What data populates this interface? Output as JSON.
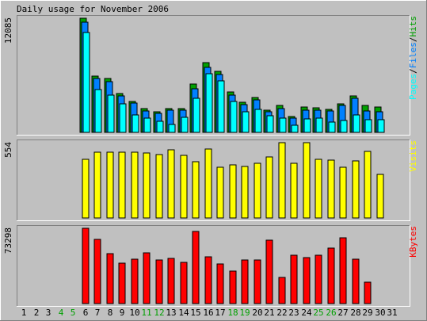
{
  "chart_data": {
    "type": "bar",
    "title": "Daily usage for November 2006",
    "categories": [
      "1",
      "2",
      "3",
      "4",
      "5",
      "6",
      "7",
      "8",
      "9",
      "10",
      "11",
      "12",
      "13",
      "14",
      "15",
      "16",
      "17",
      "18",
      "19",
      "20",
      "21",
      "22",
      "23",
      "24",
      "25",
      "26",
      "27",
      "28",
      "29",
      "30",
      "31"
    ],
    "weekend_days": [
      "4",
      "5",
      "11",
      "12",
      "18",
      "19",
      "25",
      "26"
    ],
    "colors": {
      "pages": "#00ffff",
      "files": "#0080ff",
      "hits": "#00a000",
      "visits": "#ffff00",
      "kbytes": "#ff0000",
      "panel_bg": "#c0c0c0",
      "weekend_label": "#00a000"
    },
    "panels": [
      {
        "id": "hits",
        "max_label": "12085",
        "ymax": 12085,
        "legend": [
          {
            "text": "Pages",
            "color": "#00ffff"
          },
          {
            "text": "/",
            "color": "#000000"
          },
          {
            "text": "Files",
            "color": "#0080ff"
          },
          {
            "text": "/",
            "color": "#000000"
          },
          {
            "text": "Hits",
            "color": "#00a000"
          }
        ],
        "series": [
          {
            "name": "Hits",
            "color": "#00a000",
            "values": [
              0,
              0,
              0,
              0,
              0,
              12085,
              5980,
              5730,
              4150,
              3310,
              2490,
              2180,
              2520,
              2540,
              5120,
              7370,
              6480,
              4280,
              3150,
              3700,
              2350,
              2870,
              1700,
              2680,
              2560,
              2440,
              3030,
              3900,
              2870,
              2690,
              0
            ]
          },
          {
            "name": "Files",
            "color": "#0080ff",
            "values": [
              0,
              0,
              0,
              0,
              0,
              11700,
              5700,
              5400,
              3900,
              3100,
              2280,
              2020,
              2350,
              2370,
              4650,
              6900,
              6100,
              3980,
              2900,
              3480,
              2180,
              2540,
              1480,
              2390,
              2390,
              2280,
              2820,
              3590,
              2280,
              2180,
              0
            ]
          },
          {
            "name": "Pages",
            "color": "#00ffff",
            "values": [
              0,
              0,
              0,
              0,
              0,
              10550,
              4550,
              3930,
              3000,
              1840,
              1470,
              1200,
              870,
              1580,
              3650,
              6250,
              5480,
              3300,
              2180,
              2450,
              1780,
              1520,
              750,
              1400,
              1520,
              1100,
              1230,
              1810,
              1320,
              1320,
              0
            ]
          }
        ]
      },
      {
        "id": "visits",
        "max_label": "554",
        "ymax": 554,
        "legend": [
          {
            "text": "Visits",
            "color": "#ffff00"
          }
        ],
        "series": [
          {
            "name": "Visits",
            "color": "#ffff00",
            "values": [
              0,
              0,
              0,
              0,
              0,
              429,
              485,
              485,
              485,
              485,
              480,
              465,
              502,
              462,
              414,
              508,
              371,
              392,
              377,
              405,
              451,
              554,
              400,
              554,
              431,
              424,
              372,
              422,
              488,
              323,
              0
            ]
          }
        ]
      },
      {
        "id": "kbytes",
        "max_label": "73298",
        "ymax": 73298,
        "legend": [
          {
            "text": "KBytes",
            "color": "#ff0000"
          }
        ],
        "series": [
          {
            "name": "KBytes",
            "color": "#ff0000",
            "values": [
              0,
              0,
              0,
              0,
              0,
              73298,
              62400,
              48700,
              39200,
              43300,
              49100,
              42800,
              44200,
              40100,
              70200,
              45700,
              38600,
              31300,
              42100,
              42400,
              61900,
              25200,
              47200,
              44600,
              46700,
              54300,
              63700,
              43000,
              20700,
              0,
              0
            ]
          }
        ]
      }
    ]
  }
}
